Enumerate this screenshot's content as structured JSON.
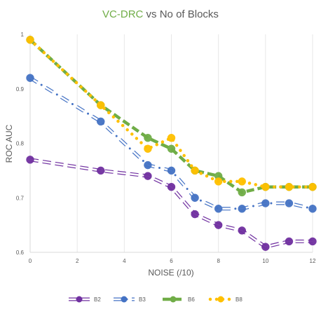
{
  "chart_data": {
    "type": "line",
    "title_part1": "VC-DRC",
    "title_part2": " vs No of Blocks",
    "xlabel": "NOISE (/10)",
    "ylabel": "ROC AUC",
    "xlim": [
      0,
      12
    ],
    "ylim": [
      0.6,
      1.0
    ],
    "x_ticks": [
      "0",
      "2",
      "4",
      "6",
      "8",
      "10",
      "12"
    ],
    "y_ticks": [
      "0.6",
      "0.7",
      "0.8",
      "0.9",
      "1"
    ],
    "grid": "vertical",
    "legend_position": "bottom",
    "series": [
      {
        "name": "B2",
        "color": "#7030A0",
        "style": "hollow-dash",
        "x": [
          0,
          3,
          5,
          6,
          7,
          8,
          9,
          10,
          11,
          12
        ],
        "y": [
          0.77,
          0.75,
          0.74,
          0.72,
          0.67,
          0.65,
          0.64,
          0.61,
          0.62,
          0.62
        ]
      },
      {
        "name": "B3",
        "color": "#4472C4",
        "style": "hollow-dot",
        "x": [
          0,
          3,
          5,
          6,
          7,
          8,
          9,
          10,
          11,
          12
        ],
        "y": [
          0.92,
          0.84,
          0.76,
          0.75,
          0.7,
          0.68,
          0.68,
          0.69,
          0.69,
          0.68
        ]
      },
      {
        "name": "B6",
        "color": "#70AD47",
        "style": "dash",
        "x": [
          0,
          3,
          5,
          6,
          7,
          8,
          9,
          10,
          11,
          12
        ],
        "y": [
          0.99,
          0.87,
          0.81,
          0.79,
          0.75,
          0.74,
          0.71,
          0.72,
          0.72,
          0.72
        ]
      },
      {
        "name": "B8",
        "color": "#FFC000",
        "style": "dot",
        "x": [
          0,
          3,
          5,
          6,
          7,
          8,
          9,
          10,
          11,
          12
        ],
        "y": [
          0.99,
          0.87,
          0.79,
          0.81,
          0.75,
          0.73,
          0.73,
          0.72,
          0.72,
          0.72
        ]
      }
    ]
  }
}
